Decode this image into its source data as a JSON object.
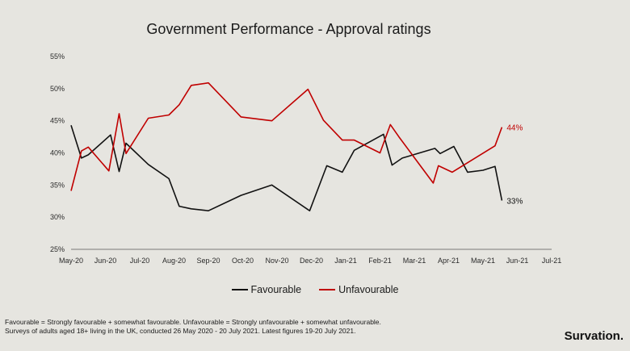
{
  "colors": {
    "favourable": "#111111",
    "unfavourable": "#c00000",
    "background": "#e6e5e0"
  },
  "chart_data": {
    "type": "line",
    "title": "Government Performance - Approval ratings",
    "xlabel": "",
    "ylabel": "",
    "ylim": [
      25,
      55
    ],
    "y_ticks": [
      {
        "value": 25,
        "label": "25%"
      },
      {
        "value": 30,
        "label": "30%"
      },
      {
        "value": 35,
        "label": "35%"
      },
      {
        "value": 40,
        "label": "40%"
      },
      {
        "value": 45,
        "label": "45%"
      },
      {
        "value": 50,
        "label": "50%"
      },
      {
        "value": 55,
        "label": "55%"
      }
    ],
    "x_ticks": [
      "May-20",
      "Jun-20",
      "Jul-20",
      "Aug-20",
      "Sep-20",
      "Oct-20",
      "Nov-20",
      "Dec-20",
      "Jan-21",
      "Feb-21",
      "Mar-21",
      "Apr-21",
      "May-21",
      "Jun-21",
      "Jul-21"
    ],
    "xlim": [
      0,
      14
    ],
    "grid": false,
    "legend": "bottom",
    "series": [
      {
        "name": "Favourable",
        "end_label": "33%",
        "points": [
          [
            0.0,
            44.3
          ],
          [
            0.3,
            39.2
          ],
          [
            0.5,
            39.7
          ],
          [
            1.15,
            42.8
          ],
          [
            1.4,
            37.1
          ],
          [
            1.6,
            41.5
          ],
          [
            2.25,
            38.2
          ],
          [
            2.85,
            36.0
          ],
          [
            3.15,
            31.7
          ],
          [
            3.5,
            31.3
          ],
          [
            4.0,
            31.0
          ],
          [
            4.95,
            33.4
          ],
          [
            5.85,
            35.0
          ],
          [
            6.95,
            31.0
          ],
          [
            7.45,
            38.0
          ],
          [
            7.9,
            37.0
          ],
          [
            8.25,
            40.4
          ],
          [
            9.1,
            42.9
          ],
          [
            9.35,
            38.1
          ],
          [
            9.65,
            39.2
          ],
          [
            10.6,
            40.7
          ],
          [
            10.75,
            39.9
          ],
          [
            11.15,
            41.0
          ],
          [
            11.55,
            37.0
          ],
          [
            12.0,
            37.3
          ],
          [
            12.35,
            37.9
          ],
          [
            12.55,
            32.6
          ]
        ]
      },
      {
        "name": "Unfavourable",
        "end_label": "44%",
        "points": [
          [
            0.0,
            34.1
          ],
          [
            0.3,
            40.3
          ],
          [
            0.5,
            40.9
          ],
          [
            1.1,
            37.2
          ],
          [
            1.4,
            46.1
          ],
          [
            1.6,
            39.9
          ],
          [
            2.25,
            45.4
          ],
          [
            2.85,
            45.9
          ],
          [
            3.15,
            47.5
          ],
          [
            3.5,
            50.5
          ],
          [
            4.0,
            50.9
          ],
          [
            4.95,
            45.6
          ],
          [
            5.85,
            45.0
          ],
          [
            6.9,
            49.9
          ],
          [
            7.35,
            45.1
          ],
          [
            7.9,
            42.0
          ],
          [
            8.25,
            42.0
          ],
          [
            9.0,
            40.0
          ],
          [
            9.3,
            44.4
          ],
          [
            9.55,
            42.5
          ],
          [
            10.55,
            35.3
          ],
          [
            10.7,
            38.0
          ],
          [
            11.1,
            37.0
          ],
          [
            12.35,
            41.1
          ],
          [
            12.55,
            44.0
          ]
        ]
      }
    ]
  },
  "footnote": {
    "line1": "Favourable = Strongly favourable + somewhat favourable. Unfavourable = Strongly unfavourable + somewhat unfavourable.",
    "line2": "Surveys of adults aged 18+ living in the UK, conducted 26 May 2020 - 20 July 2021.  Latest figures 19-20 July 2021."
  },
  "brand": "Survation."
}
